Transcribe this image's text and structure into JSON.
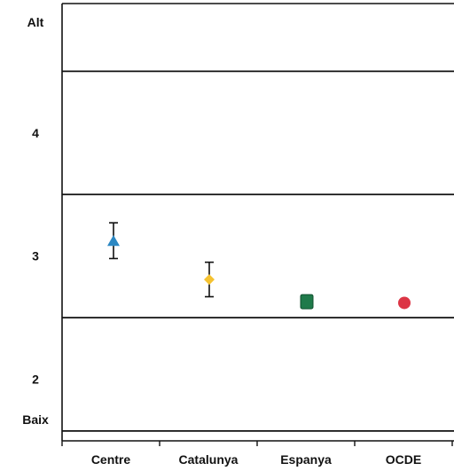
{
  "chart_data": {
    "type": "scatter",
    "title": "",
    "xlabel": "",
    "ylabel": "",
    "categories": [
      "Centre",
      "Catalunya",
      "Espanya",
      "OCDE"
    ],
    "y_tick_labels": [
      "Alt",
      "4",
      "3",
      "2",
      "Baix"
    ],
    "band_boundaries": [
      2.5,
      3.5,
      4.5
    ],
    "ylim": [
      1.5,
      5.05
    ],
    "grid": false,
    "legend": "none",
    "points": [
      {
        "category": "Centre",
        "value": 3.12,
        "error_low": 2.98,
        "error_high": 3.27,
        "marker": "triangle",
        "color": "#2b87c2"
      },
      {
        "category": "Catalunya",
        "value": 2.81,
        "error_low": 2.67,
        "error_high": 2.95,
        "marker": "diamond",
        "color": "#f5c231"
      },
      {
        "category": "Espanya",
        "value": 2.63,
        "marker": "square",
        "color": "#1f7a4a"
      },
      {
        "category": "OCDE",
        "value": 2.62,
        "marker": "circle",
        "color": "#dc3545"
      }
    ]
  }
}
